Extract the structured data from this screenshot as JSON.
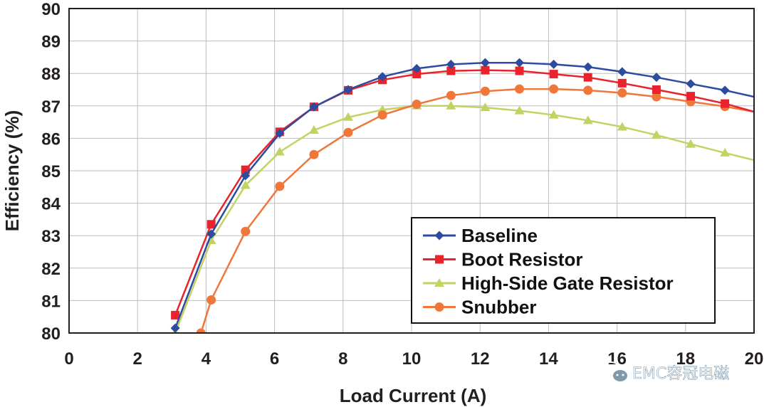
{
  "chart_data": {
    "type": "line",
    "title": "",
    "xlabel": "Load Current (A)",
    "ylabel": "Efficiency (%)",
    "xlim": [
      0,
      20
    ],
    "ylim": [
      80,
      90
    ],
    "xticks": [
      "0",
      "2",
      "4",
      "6",
      "8",
      "10",
      "12",
      "14",
      "16",
      "18",
      "20"
    ],
    "yticks": [
      "80",
      "81",
      "82",
      "83",
      "84",
      "85",
      "86",
      "87",
      "88",
      "89",
      "90"
    ],
    "grid": true,
    "legend_position": "lower-right",
    "series": [
      {
        "name": "Baseline",
        "color": "#2e4c9f",
        "marker": "diamond",
        "x": [
          3.1,
          4.15,
          5.15,
          6.15,
          7.15,
          8.15,
          9.15,
          10.15,
          11.15,
          12.15,
          13.15,
          14.15,
          15.15,
          16.15,
          17.15,
          18.15,
          19.15,
          20
        ],
        "y": [
          80.15,
          83.05,
          84.85,
          86.15,
          86.97,
          87.5,
          87.9,
          88.15,
          88.28,
          88.33,
          88.33,
          88.28,
          88.2,
          88.05,
          87.88,
          87.68,
          87.48,
          87.28
        ]
      },
      {
        "name": "Boot Resistor",
        "color": "#e8232b",
        "marker": "square",
        "x": [
          3.1,
          4.15,
          5.15,
          6.15,
          7.15,
          8.15,
          9.15,
          10.15,
          11.15,
          12.15,
          13.15,
          14.15,
          15.15,
          16.15,
          17.15,
          18.15,
          19.15,
          20
        ],
        "y": [
          80.55,
          83.35,
          85.03,
          86.2,
          86.97,
          87.48,
          87.8,
          87.98,
          88.08,
          88.1,
          88.08,
          87.98,
          87.88,
          87.7,
          87.5,
          87.3,
          87.07,
          86.82
        ]
      },
      {
        "name": "High-Side Gate Resistor",
        "color": "#c3d263",
        "marker": "triangle",
        "x": [
          3.1,
          4.15,
          5.15,
          6.15,
          7.15,
          8.15,
          9.15,
          10.15,
          11.15,
          12.15,
          13.15,
          14.15,
          15.15,
          16.15,
          17.15,
          18.15,
          19.15,
          20
        ],
        "y": [
          80.0,
          82.85,
          84.55,
          85.58,
          86.25,
          86.65,
          86.88,
          87.0,
          87.0,
          86.95,
          86.85,
          86.72,
          86.55,
          86.35,
          86.1,
          85.82,
          85.55,
          85.33
        ]
      },
      {
        "name": "Snubber",
        "color": "#f0773a",
        "marker": "circle",
        "x": [
          3.85,
          4.15,
          5.15,
          6.15,
          7.15,
          8.15,
          9.15,
          10.15,
          11.15,
          12.15,
          13.15,
          14.15,
          15.15,
          16.15,
          17.15,
          18.15,
          19.15,
          20
        ],
        "y": [
          80.0,
          81.02,
          83.13,
          84.52,
          85.5,
          86.18,
          86.72,
          87.05,
          87.32,
          87.45,
          87.52,
          87.52,
          87.48,
          87.4,
          87.28,
          87.13,
          86.98,
          86.82
        ]
      }
    ]
  },
  "watermark": {
    "text": "EMC容冠电磁",
    "icon": "wechat-icon"
  }
}
